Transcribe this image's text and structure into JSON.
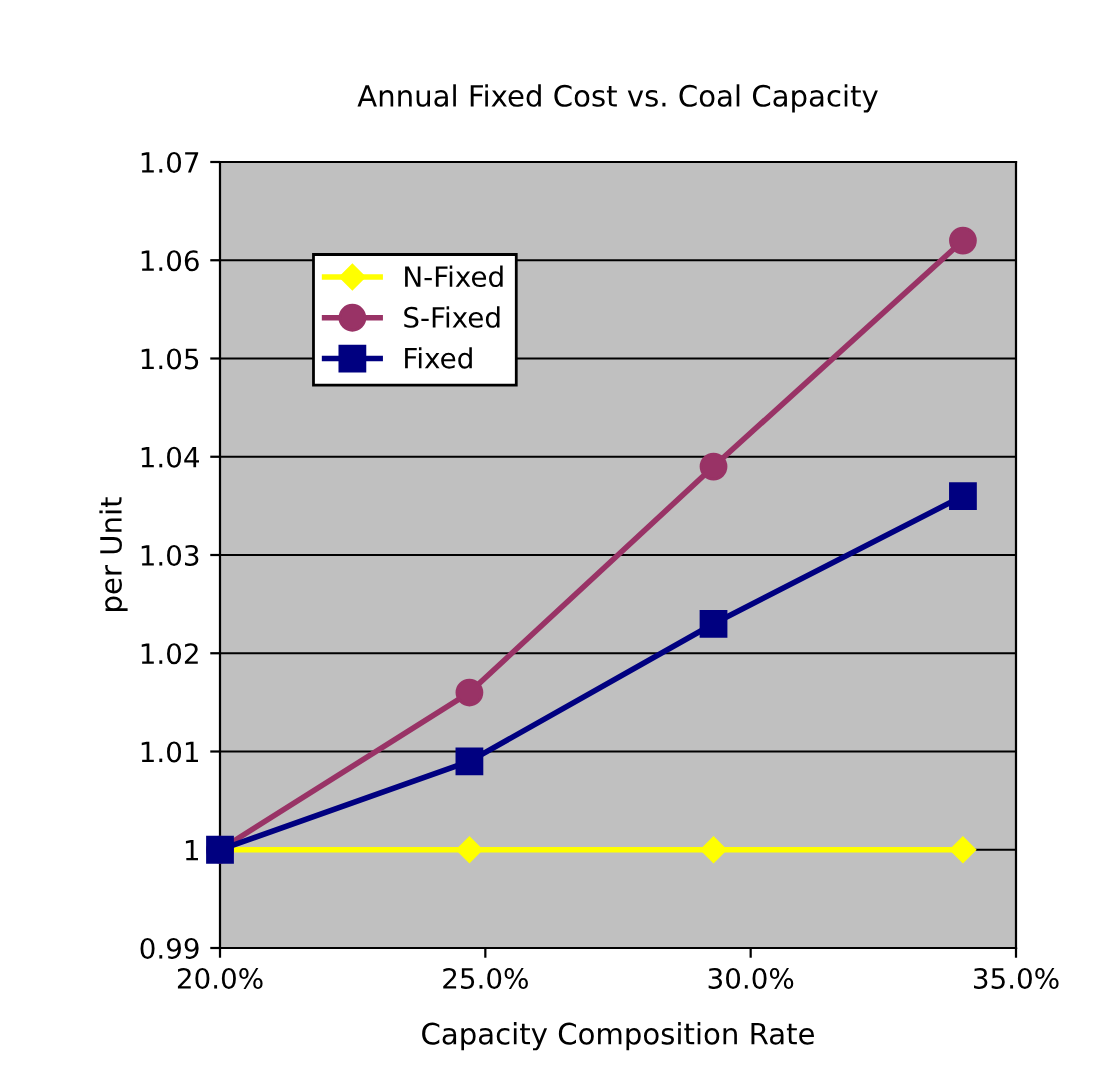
{
  "chart_data": {
    "type": "line",
    "title": "Annual Fixed Cost vs. Coal Capacity",
    "xlabel": "Capacity Composition Rate",
    "ylabel": "per Unit",
    "series": [
      {
        "name": "N-Fixed",
        "color": "#ffff00",
        "marker": "diamond",
        "x": [
          20,
          24.7,
          29.3,
          34.0
        ],
        "values": [
          1,
          1,
          1,
          1
        ]
      },
      {
        "name": "S-Fixed",
        "color": "#993366",
        "marker": "circle",
        "x": [
          20,
          24.7,
          29.3,
          34.0
        ],
        "values": [
          1,
          1.016,
          1.039,
          1.062
        ]
      },
      {
        "name": "Fixed",
        "color": "#000080",
        "marker": "square",
        "x": [
          20,
          24.7,
          29.3,
          34.0
        ],
        "values": [
          1,
          1.009,
          1.023,
          1.036
        ]
      }
    ],
    "xlim": [
      20,
      35
    ],
    "xticks": [
      {
        "value": 20,
        "label": "20.0%"
      },
      {
        "value": 25,
        "label": "25.0%"
      },
      {
        "value": 30,
        "label": "30.0%"
      },
      {
        "value": 35,
        "label": "35.0%"
      }
    ],
    "ylim": [
      0.99,
      1.07
    ],
    "yticks": [
      0.99,
      1,
      1.01,
      1.02,
      1.03,
      1.04,
      1.05,
      1.06,
      1.07
    ],
    "grid": "y",
    "legend": "top left"
  }
}
